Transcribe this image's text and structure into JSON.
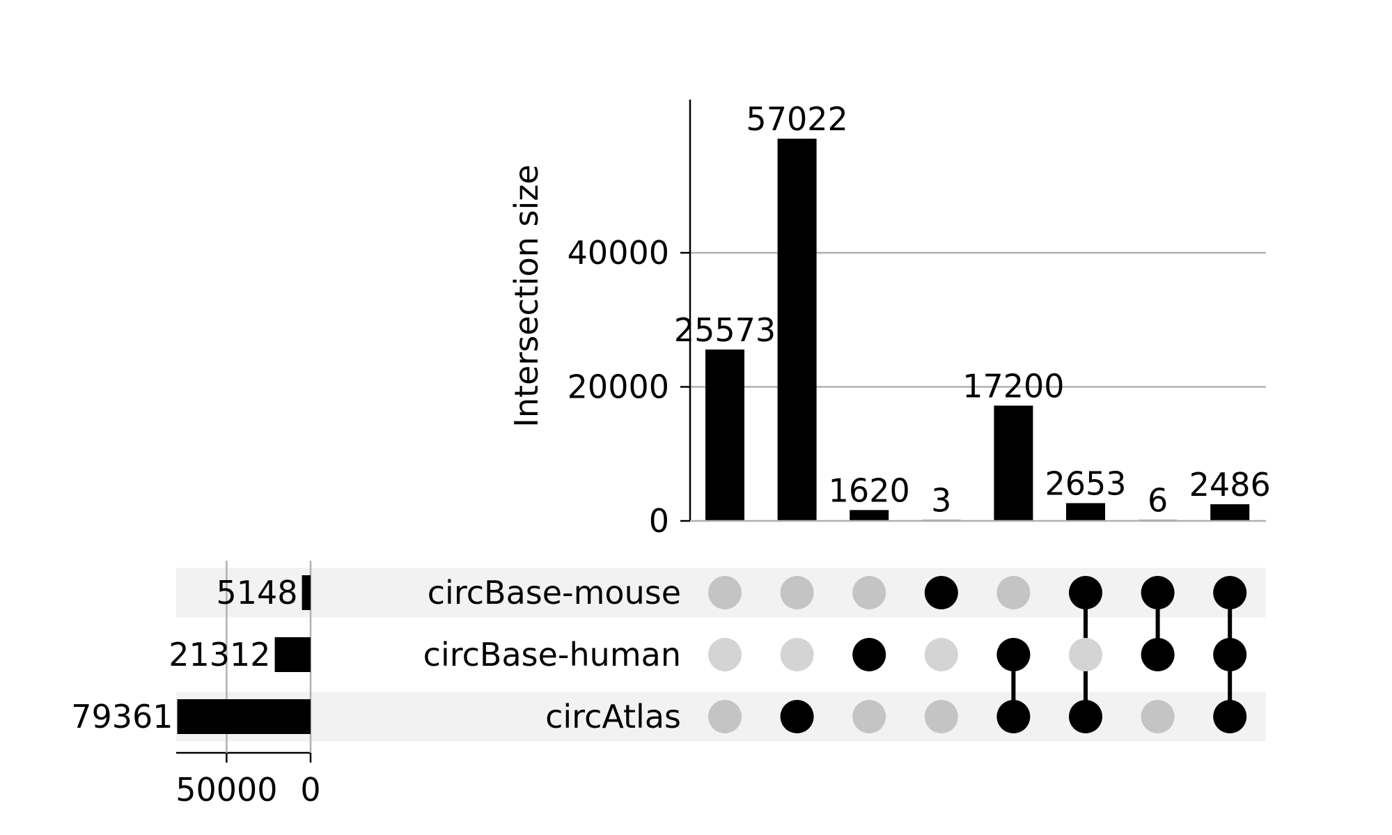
{
  "chart_data": {
    "type": "upset",
    "ylabel": "Intersection size",
    "ylim": [
      0,
      60000
    ],
    "yticks": [
      0,
      20000,
      40000
    ],
    "grid": true,
    "sets": [
      {
        "name": "circBase-mouse",
        "size": 5148
      },
      {
        "name": "circBase-human",
        "size": 21312
      },
      {
        "name": "circAtlas",
        "size": 79361
      }
    ],
    "set_size_ticks": [
      50000,
      0
    ],
    "set_size_max": 80000,
    "intersections": [
      {
        "members": [],
        "size": 25573
      },
      {
        "members": [
          "circAtlas"
        ],
        "size": 57022
      },
      {
        "members": [
          "circBase-human"
        ],
        "size": 1620
      },
      {
        "members": [
          "circBase-mouse"
        ],
        "size": 3
      },
      {
        "members": [
          "circBase-human",
          "circAtlas"
        ],
        "size": 17200
      },
      {
        "members": [
          "circBase-mouse",
          "circAtlas"
        ],
        "size": 2653
      },
      {
        "members": [
          "circBase-mouse",
          "circBase-human"
        ],
        "size": 6
      },
      {
        "members": [
          "circBase-mouse",
          "circBase-human",
          "circAtlas"
        ],
        "size": 2486
      }
    ]
  }
}
